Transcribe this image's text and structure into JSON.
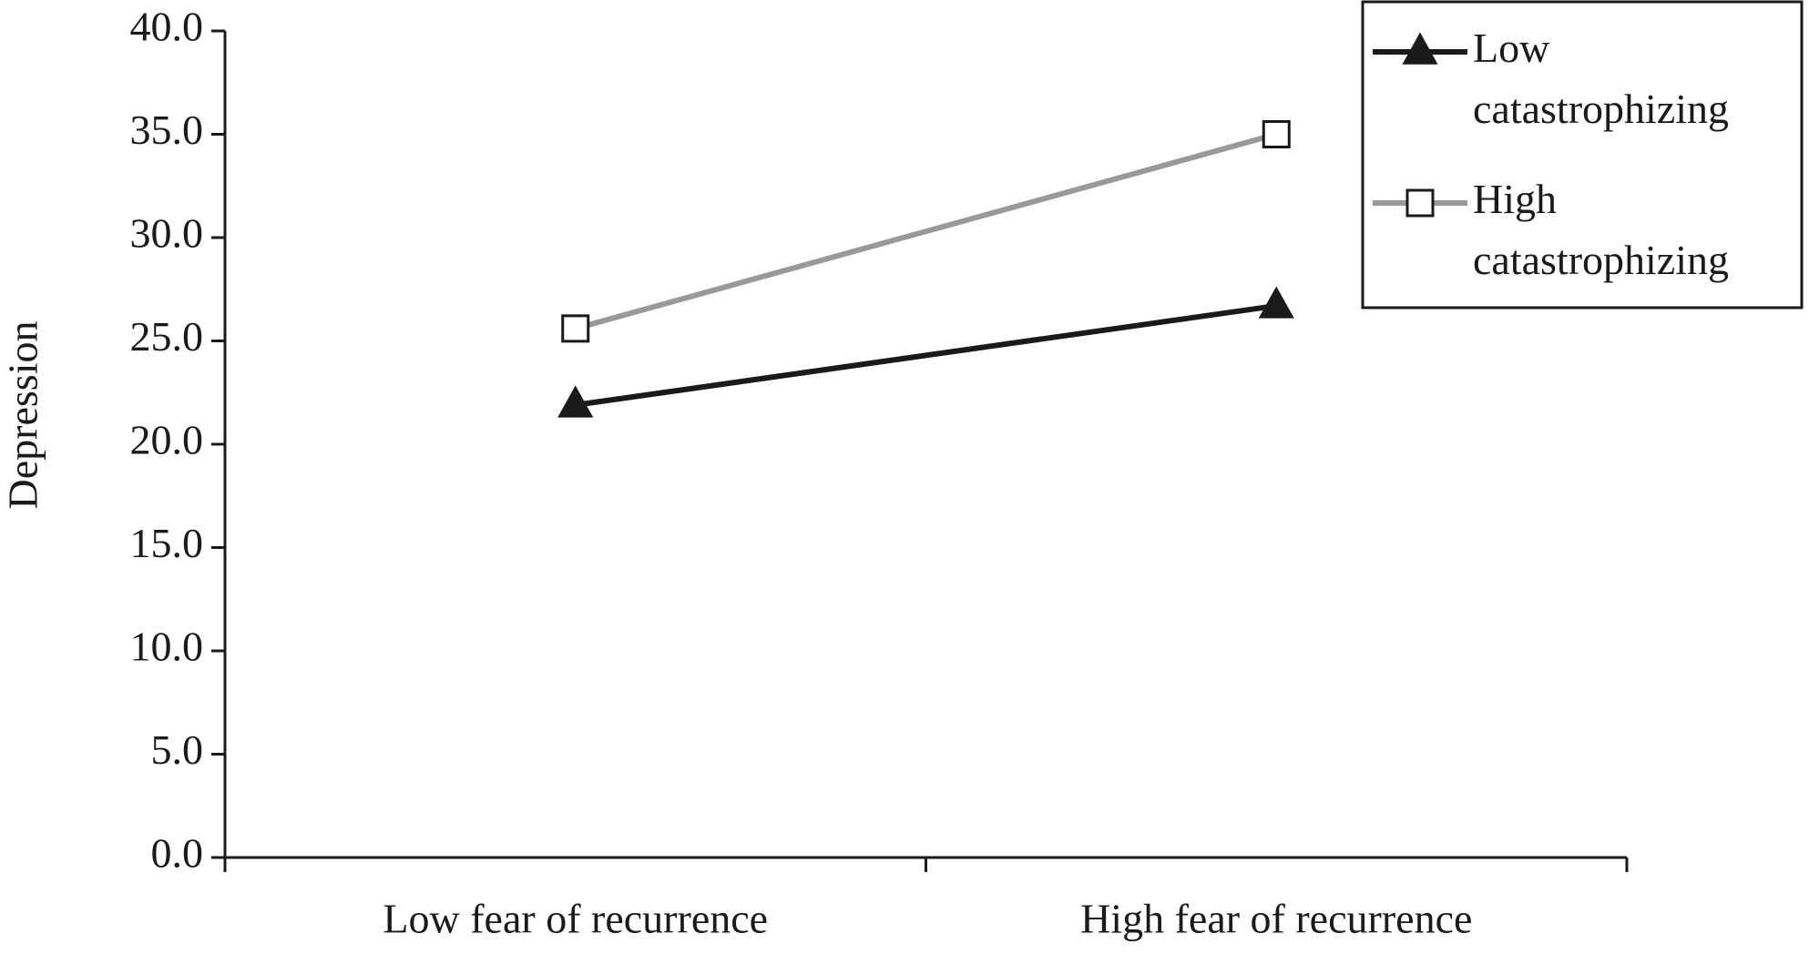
{
  "chart_data": {
    "type": "line",
    "y_label": "Depression",
    "categories": [
      "Low fear of recurrence",
      "High fear of recurrence"
    ],
    "series": [
      {
        "name": "Low catastrophizing",
        "color": "#1a1a1a",
        "marker": "triangle",
        "values": [
          21.9,
          26.7
        ]
      },
      {
        "name": "High catastrophizing",
        "color": "#999999",
        "marker": "square",
        "values": [
          25.6,
          35.0
        ]
      }
    ],
    "ylim": [
      0,
      40
    ],
    "yticks": [
      {
        "value": 0,
        "label": "0.0"
      },
      {
        "value": 5,
        "label": "5.0"
      },
      {
        "value": 10,
        "label": "10.0"
      },
      {
        "value": 15,
        "label": "15.0"
      },
      {
        "value": 20,
        "label": "20.0"
      },
      {
        "value": 25,
        "label": "25.0"
      },
      {
        "value": 30,
        "label": "30.0"
      },
      {
        "value": 35,
        "label": "35.0"
      },
      {
        "value": 40,
        "label": "40.0"
      }
    ],
    "grid": false,
    "legend": "top-right"
  }
}
